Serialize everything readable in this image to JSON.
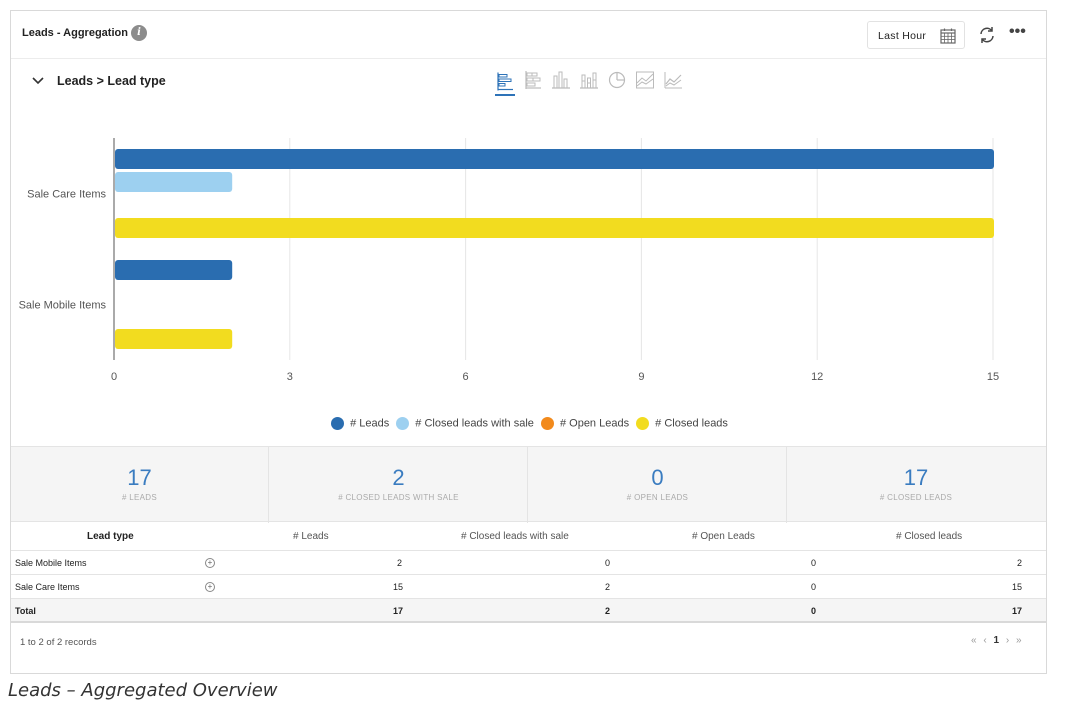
{
  "widget": {
    "title": "Leads - Aggregation",
    "info_icon": "info-icon",
    "time_range": "Last Hour",
    "breadcrumb": "Leads > Lead type",
    "chart_type_icons": [
      "horizontal-bar-icon",
      "stacked-horizontal-bar-icon",
      "vertical-bar-icon",
      "stacked-vertical-bar-icon",
      "pie-icon",
      "area-icon",
      "line-icon"
    ],
    "active_chart_type": "horizontal-bar-icon"
  },
  "chart_data": {
    "type": "bar",
    "orientation": "horizontal",
    "categories": [
      "Sale Care Items",
      "Sale Mobile Items"
    ],
    "series": [
      {
        "name": "# Leads",
        "color": "#2a6db0",
        "values": [
          15,
          2
        ]
      },
      {
        "name": "# Closed leads with sale",
        "color": "#9dd0f0",
        "values": [
          2,
          0
        ]
      },
      {
        "name": "# Open Leads",
        "color": "#f28a1c",
        "values": [
          0,
          0
        ]
      },
      {
        "name": "# Closed leads",
        "color": "#f2dc1f",
        "values": [
          15,
          2
        ]
      }
    ],
    "xticks": [
      "0",
      "3",
      "6",
      "9",
      "12",
      "15"
    ],
    "xlim": [
      0,
      15
    ],
    "grid": true,
    "legend_position": "bottom"
  },
  "summary": [
    {
      "value": "17",
      "label": "# LEADS"
    },
    {
      "value": "2",
      "label": "# CLOSED LEADS WITH SALE"
    },
    {
      "value": "0",
      "label": "# OPEN LEADS"
    },
    {
      "value": "17",
      "label": "# CLOSED LEADS"
    }
  ],
  "table": {
    "headers": [
      "Lead type",
      "# Leads",
      "# Closed leads with sale",
      "# Open Leads",
      "# Closed leads"
    ],
    "rows": [
      {
        "type": "Sale Mobile Items",
        "leads": "2",
        "closed_sale": "0",
        "open": "0",
        "closed": "2"
      },
      {
        "type": "Sale Care Items",
        "leads": "15",
        "closed_sale": "2",
        "open": "0",
        "closed": "15"
      }
    ],
    "total": {
      "type": "Total",
      "leads": "17",
      "closed_sale": "2",
      "open": "0",
      "closed": "17"
    }
  },
  "footer": {
    "records": "1 to 2 of 2 records",
    "pager_first": "«",
    "pager_prev": "‹",
    "page": "1",
    "pager_next": "›",
    "pager_last": "»"
  },
  "caption": "Leads – Aggregated Overview"
}
